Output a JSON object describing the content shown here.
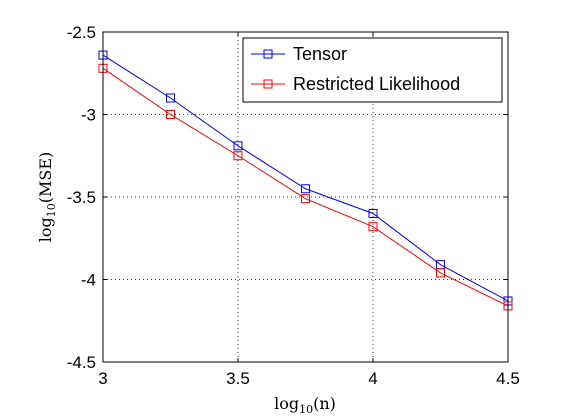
{
  "chart_data": {
    "type": "line",
    "title": "",
    "xlabel": "log",
    "xlabel_sub": "10",
    "xlabel_arg": "(n)",
    "ylabel": "log",
    "ylabel_sub": "10",
    "ylabel_arg": "(MSE)",
    "xlim": [
      3,
      4.5
    ],
    "ylim": [
      -4.5,
      -2.5
    ],
    "xticks": [
      3,
      3.5,
      4,
      4.5
    ],
    "xtick_labels": [
      "3",
      "3.5",
      "4",
      "4.5"
    ],
    "yticks": [
      -2.5,
      -3,
      -3.5,
      -4,
      -4.5
    ],
    "ytick_labels": [
      "-2.5",
      "-3",
      "-3.5",
      "-4",
      "-4.5"
    ],
    "grid": true,
    "legend_position": "top-right",
    "x": [
      3,
      3.25,
      3.5,
      3.75,
      4,
      4.25,
      4.5
    ],
    "series": [
      {
        "name": "Tensor",
        "color": "#0000ff",
        "marker": "square",
        "values": [
          -2.64,
          -2.9,
          -3.19,
          -3.45,
          -3.6,
          -3.91,
          -4.13
        ]
      },
      {
        "name": "Restricted Likelihood",
        "color": "#ff0000",
        "marker": "square",
        "values": [
          -2.72,
          -3.0,
          -3.25,
          -3.51,
          -3.68,
          -3.96,
          -4.16
        ]
      }
    ]
  }
}
